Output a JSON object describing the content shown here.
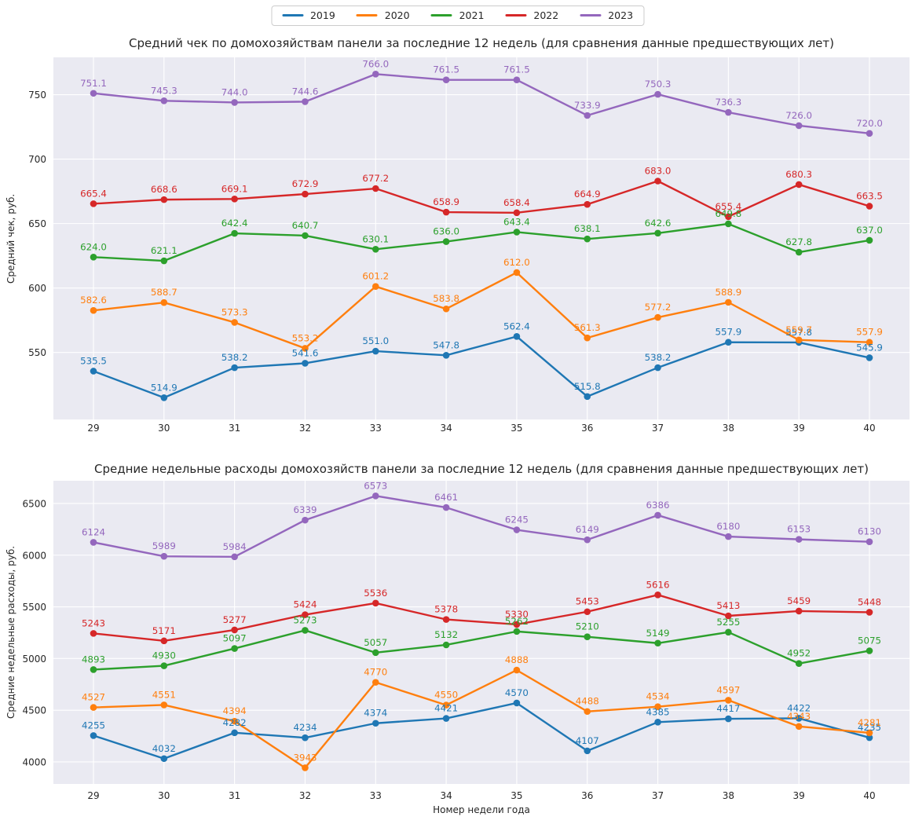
{
  "figure": {
    "background": "#ffffff",
    "plot_background": "#eaeaf2",
    "grid_color": "#ffffff",
    "text_color": "#262626"
  },
  "legend": {
    "position": "top-center",
    "entries": [
      {
        "label": "2019",
        "color": "#1f77b4"
      },
      {
        "label": "2020",
        "color": "#ff7f0e"
      },
      {
        "label": "2021",
        "color": "#2ca02c"
      },
      {
        "label": "2022",
        "color": "#d62728"
      },
      {
        "label": "2023",
        "color": "#9467bd"
      }
    ]
  },
  "chart_data": [
    {
      "type": "line",
      "title": "Средний чек по домохозяйствам панели за последние 12 недель (для сравнения данные предшествующих лет)",
      "ylabel": "Средний чек, руб.",
      "xlabel": "",
      "x": [
        29,
        30,
        31,
        32,
        33,
        34,
        35,
        36,
        37,
        38,
        39,
        40
      ],
      "yticks": [
        550,
        600,
        650,
        700,
        750
      ],
      "ylim": [
        498,
        779
      ],
      "grid": true,
      "point_labels": true,
      "value_decimals": 1,
      "series": [
        {
          "name": "2019",
          "color": "#1f77b4",
          "values": [
            535.5,
            514.9,
            538.2,
            541.6,
            551.0,
            547.8,
            562.4,
            515.8,
            538.2,
            557.9,
            557.8,
            545.9
          ]
        },
        {
          "name": "2020",
          "color": "#ff7f0e",
          "values": [
            582.6,
            588.7,
            573.3,
            553.2,
            601.2,
            583.8,
            612.0,
            561.3,
            577.2,
            588.9,
            559.7,
            557.9
          ]
        },
        {
          "name": "2021",
          "color": "#2ca02c",
          "values": [
            624.0,
            621.1,
            642.4,
            640.7,
            630.1,
            636.0,
            643.4,
            638.1,
            642.6,
            649.8,
            627.8,
            637.0
          ]
        },
        {
          "name": "2022",
          "color": "#d62728",
          "values": [
            665.4,
            668.6,
            669.1,
            672.9,
            677.2,
            658.9,
            658.4,
            664.9,
            683.0,
            655.4,
            680.3,
            663.5
          ]
        },
        {
          "name": "2023",
          "color": "#9467bd",
          "values": [
            751.1,
            745.3,
            744.0,
            744.6,
            766.0,
            761.5,
            761.5,
            733.9,
            750.3,
            736.3,
            726.0,
            720.0
          ]
        }
      ]
    },
    {
      "type": "line",
      "title": "Средние недельные расходы домохозяйств панели за последние 12 недель (для сравнения данные предшествующих лет)",
      "ylabel": "Средние недельные расходы, руб.",
      "xlabel": "Номер недели года",
      "x": [
        29,
        30,
        31,
        32,
        33,
        34,
        35,
        36,
        37,
        38,
        39,
        40
      ],
      "yticks": [
        4000,
        4500,
        5000,
        5500,
        6000,
        6500
      ],
      "ylim": [
        3787,
        6720
      ],
      "grid": true,
      "point_labels": true,
      "value_decimals": 0,
      "series": [
        {
          "name": "2019",
          "color": "#1f77b4",
          "values": [
            4255,
            4032,
            4282,
            4234,
            4374,
            4421,
            4570,
            4107,
            4385,
            4417,
            4422,
            4235
          ]
        },
        {
          "name": "2020",
          "color": "#ff7f0e",
          "values": [
            4527,
            4551,
            4394,
            3943,
            4770,
            4550,
            4888,
            4488,
            4534,
            4597,
            4343,
            4281
          ]
        },
        {
          "name": "2021",
          "color": "#2ca02c",
          "values": [
            4893,
            4930,
            5097,
            5273,
            5057,
            5132,
            5262,
            5210,
            5149,
            5255,
            4952,
            5075
          ]
        },
        {
          "name": "2022",
          "color": "#d62728",
          "values": [
            5243,
            5171,
            5277,
            5424,
            5536,
            5378,
            5330,
            5453,
            5616,
            5413,
            5459,
            5448
          ]
        },
        {
          "name": "2023",
          "color": "#9467bd",
          "values": [
            6124,
            5989,
            5984,
            6339,
            6573,
            6461,
            6245,
            6149,
            6386,
            6180,
            6153,
            6130
          ]
        }
      ]
    }
  ]
}
